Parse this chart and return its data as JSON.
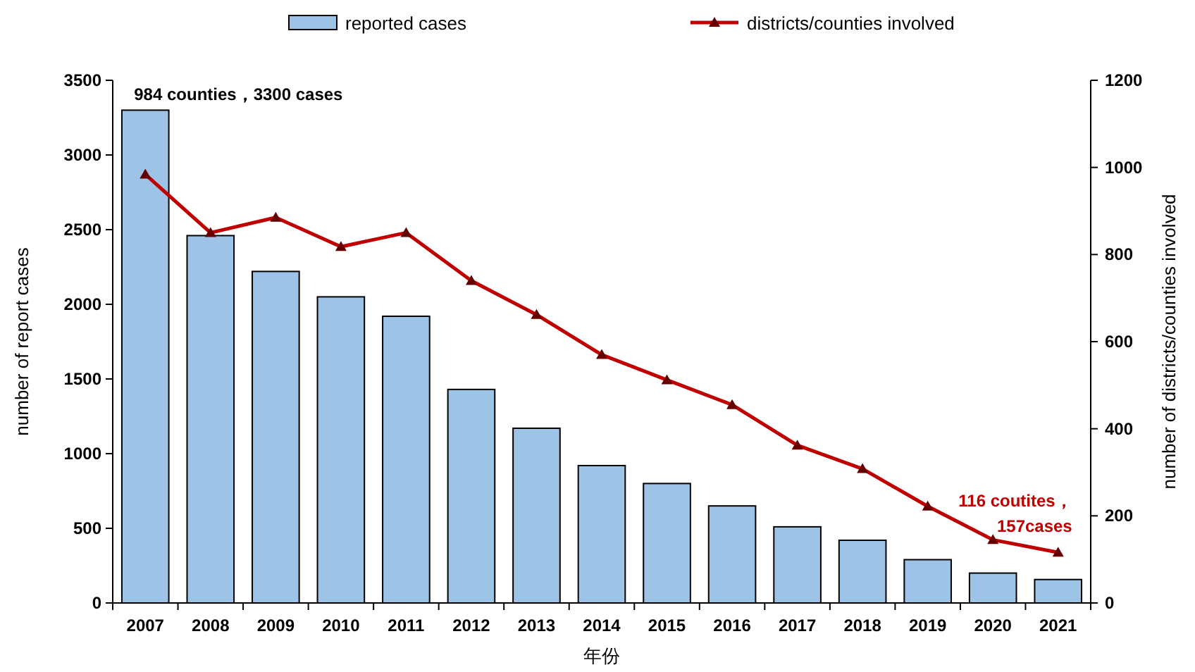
{
  "chart_data": {
    "type": "bar",
    "categories": [
      "2007",
      "2008",
      "2009",
      "2010",
      "2011",
      "2012",
      "2013",
      "2014",
      "2015",
      "2016",
      "2017",
      "2018",
      "2019",
      "2020",
      "2021"
    ],
    "xlabel": "年份",
    "ylabel": "number of report cases",
    "y2label": "number of districts/counties involved",
    "series": [
      {
        "name": "reported cases",
        "color": "#9dc3e6",
        "values": [
          3300,
          2460,
          2220,
          2050,
          1920,
          1430,
          1170,
          920,
          800,
          650,
          510,
          420,
          290,
          200,
          157
        ]
      },
      {
        "name": "districts/counties involved",
        "type": "line",
        "axis": "y2",
        "color": "#c00000",
        "values": [
          984,
          850,
          885,
          818,
          850,
          740,
          662,
          570,
          512,
          455,
          362,
          308,
          222,
          145,
          116
        ]
      }
    ],
    "ylim": [
      0,
      3500
    ],
    "yticks": [
      0,
      500,
      1000,
      1500,
      2000,
      2500,
      3000,
      3500
    ],
    "y2lim": [
      0,
      1200
    ],
    "y2ticks": [
      0,
      200,
      400,
      600,
      800,
      1000,
      1200
    ],
    "annotations": [
      {
        "text": "984 counties，3300 cases",
        "x": "2007",
        "y": 3300
      },
      {
        "text": "116 coutites，\n157cases",
        "x": "2021",
        "y": 157
      }
    ],
    "legend": "top",
    "grid": false,
    "marker": "triangle",
    "line_style": "solid"
  }
}
